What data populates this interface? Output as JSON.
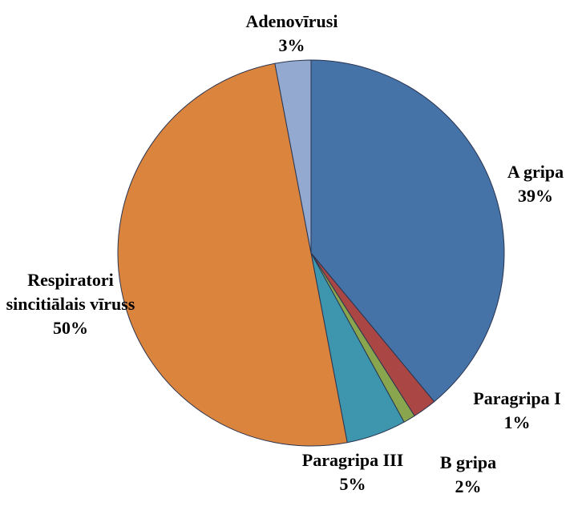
{
  "chart_data": {
    "type": "pie",
    "categories": [
      "A gripa",
      "B gripa",
      "Paragripa I",
      "Paragripa III",
      "Respiratori sincitiālais vīruss",
      "Adenovīrusi"
    ],
    "values": [
      39,
      2,
      1,
      5,
      50,
      3
    ],
    "value_labels": [
      "39%",
      "2%",
      "1%",
      "5%",
      "50%",
      "3%"
    ],
    "colors": [
      "#4572a7",
      "#aa4643",
      "#89a54e",
      "#3d96ae",
      "#db843d",
      "#93a9cf"
    ]
  }
}
